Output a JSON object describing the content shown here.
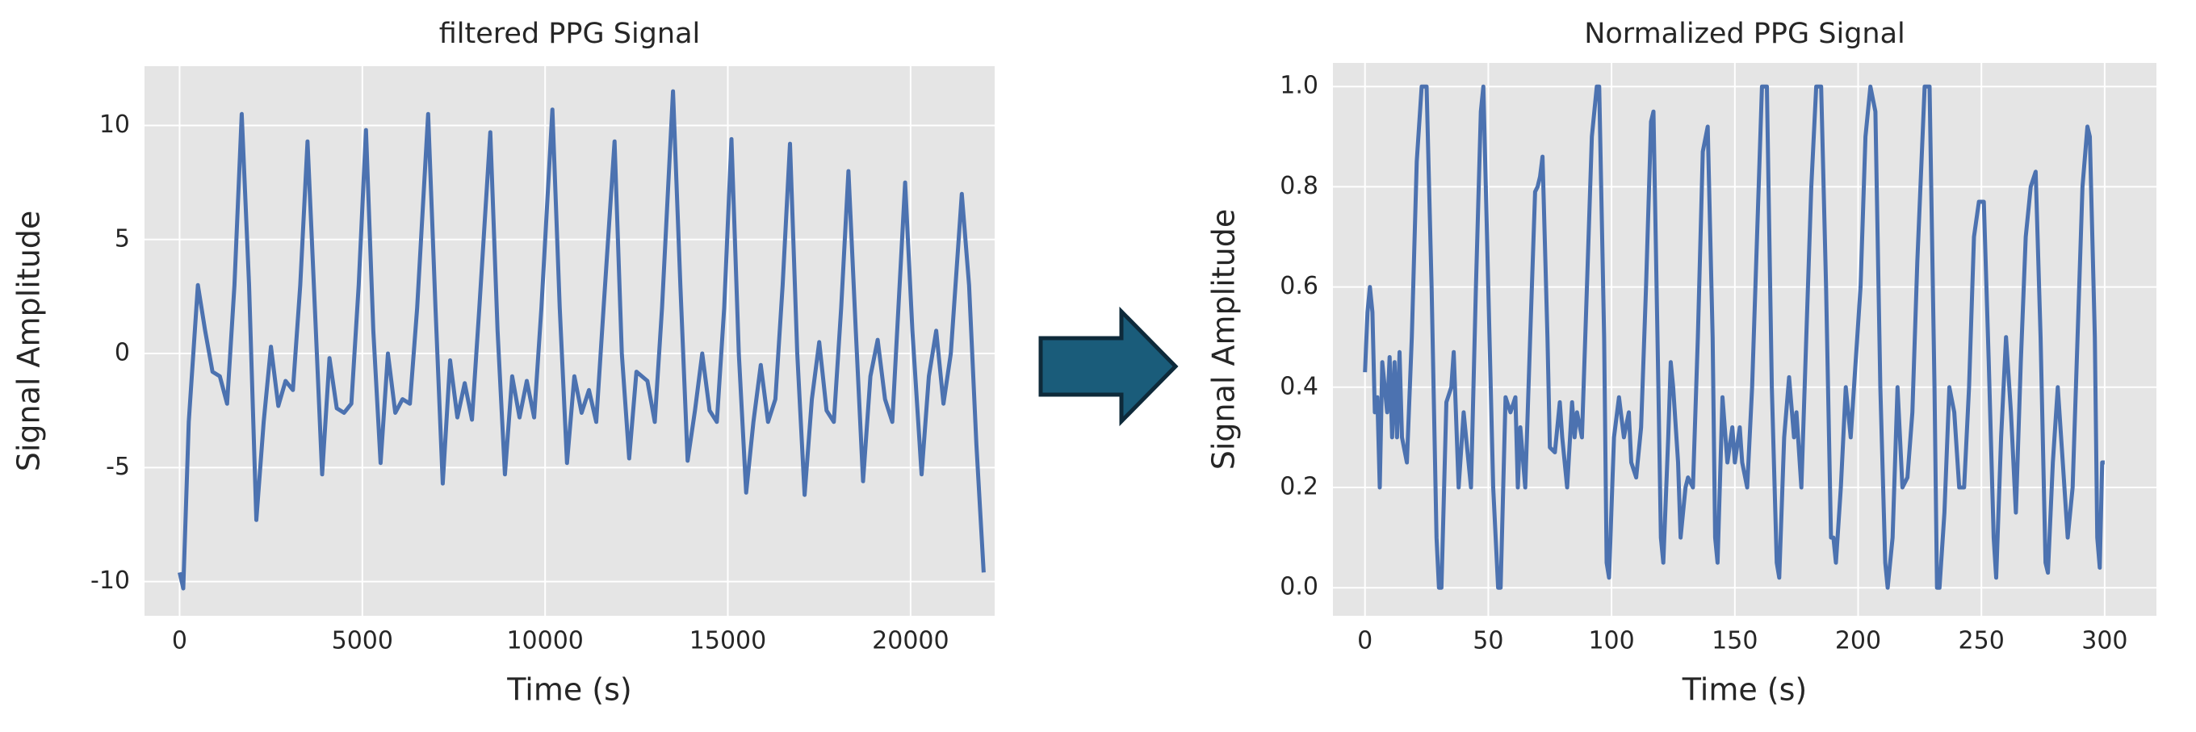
{
  "chart_data": [
    {
      "type": "line",
      "title": "filtered PPG Signal",
      "x_label": "Time (s)",
      "y_label": "Signal Amplitude",
      "color": "#4c72b0",
      "grid": true,
      "x": [
        0,
        100,
        250,
        500,
        700,
        900,
        1100,
        1300,
        1500,
        1700,
        1900,
        2100,
        2300,
        2500,
        2700,
        2900,
        3100,
        3300,
        3500,
        3700,
        3900,
        4100,
        4300,
        4500,
        4700,
        4900,
        5100,
        5300,
        5500,
        5700,
        5900,
        6100,
        6300,
        6500,
        6800,
        7000,
        7200,
        7400,
        7600,
        7800,
        8000,
        8200,
        8500,
        8700,
        8900,
        9100,
        9300,
        9500,
        9700,
        9900,
        10200,
        10400,
        10600,
        10800,
        11000,
        11200,
        11400,
        11600,
        11900,
        12100,
        12300,
        12500,
        12800,
        13000,
        13200,
        13500,
        13700,
        13900,
        14100,
        14300,
        14500,
        14700,
        14900,
        15100,
        15300,
        15500,
        15700,
        15900,
        16100,
        16300,
        16500,
        16700,
        16900,
        17100,
        17300,
        17500,
        17700,
        17900,
        18100,
        18300,
        18500,
        18700,
        18900,
        19100,
        19300,
        19500,
        19700,
        19850,
        20050,
        20300,
        20500,
        20700,
        20900,
        21100,
        21400,
        21600,
        21800,
        22000
      ],
      "values": [
        -9.6,
        -10.3,
        -3,
        3,
        1,
        -0.8,
        -1,
        -2.2,
        3,
        10.5,
        3,
        -7.3,
        -3,
        0.3,
        -2.3,
        -1.2,
        -1.6,
        3,
        9.3,
        2,
        -5.3,
        -0.2,
        -2.4,
        -2.6,
        -2.2,
        3,
        9.8,
        1,
        -4.8,
        0,
        -2.6,
        -2,
        -2.2,
        2,
        10.5,
        2,
        -5.7,
        -0.3,
        -2.8,
        -1.3,
        -2.9,
        2,
        9.7,
        1,
        -5.3,
        -1,
        -2.8,
        -1.2,
        -2.8,
        2,
        10.7,
        2,
        -4.8,
        -1,
        -2.6,
        -1.6,
        -3,
        2,
        9.3,
        0,
        -4.6,
        -0.8,
        -1.2,
        -3,
        2,
        11.5,
        3,
        -4.7,
        -2.5,
        0,
        -2.5,
        -3,
        2,
        9.4,
        0,
        -6.1,
        -3,
        -0.5,
        -3,
        -2,
        3,
        9.2,
        0,
        -6.2,
        -2,
        0.5,
        -2.5,
        -3,
        2,
        8,
        1,
        -5.6,
        -1,
        0.6,
        -2,
        -3,
        3,
        7.5,
        1,
        -5.3,
        -1,
        1,
        -2.2,
        0,
        7,
        3,
        -4,
        -9.6
      ],
      "xlim": [
        -960,
        22300
      ],
      "xticks": [
        0,
        5000,
        10000,
        15000,
        20000
      ],
      "ylim": [
        -11.5,
        12.6
      ],
      "yticks": [
        -10,
        -5,
        0,
        5,
        10
      ]
    },
    {
      "type": "line",
      "title": "Normalized PPG Signal",
      "x_label": "Time (s)",
      "y_label": "Signal Amplitude",
      "color": "#4c72b0",
      "grid": true,
      "x": [
        0,
        1,
        2,
        3,
        4,
        5,
        6,
        7,
        9,
        10,
        11,
        12,
        13,
        14,
        15,
        17,
        19,
        21,
        23,
        25,
        27,
        29,
        30,
        31,
        33,
        35,
        36,
        38,
        40,
        41,
        43,
        45,
        47,
        48,
        50,
        52,
        54,
        55,
        57,
        59,
        61,
        62,
        63,
        65,
        67,
        69,
        70,
        71,
        72,
        74,
        75,
        77,
        79,
        80,
        82,
        84,
        85,
        86,
        88,
        90,
        92,
        94,
        95,
        97,
        98,
        99,
        101,
        103,
        105,
        107,
        108,
        110,
        112,
        114,
        116,
        117,
        119,
        120,
        121,
        123,
        124,
        125,
        127,
        128,
        130,
        131,
        133,
        135,
        137,
        139,
        141,
        142,
        143,
        145,
        147,
        149,
        150,
        152,
        153,
        155,
        157,
        159,
        161,
        163,
        165,
        167,
        168,
        170,
        172,
        174,
        175,
        177,
        179,
        181,
        183,
        185,
        187,
        189,
        190,
        191,
        193,
        195,
        197,
        199,
        201,
        203,
        205,
        207,
        209,
        211,
        212,
        214,
        216,
        218,
        220,
        222,
        224,
        227,
        229,
        231,
        232,
        233,
        235,
        237,
        239,
        241,
        243,
        245,
        247,
        249,
        251,
        253,
        255,
        256,
        258,
        260,
        262,
        264,
        266,
        268,
        270,
        272,
        274,
        276,
        277,
        279,
        281,
        283,
        285,
        287,
        289,
        291,
        293,
        294,
        296,
        297,
        298,
        299,
        300
      ],
      "values": [
        0.43,
        0.55,
        0.6,
        0.55,
        0.35,
        0.38,
        0.2,
        0.45,
        0.35,
        0.46,
        0.3,
        0.45,
        0.3,
        0.47,
        0.3,
        0.25,
        0.5,
        0.85,
        1.0,
        1.0,
        0.6,
        0.1,
        0,
        0,
        0.37,
        0.4,
        0.47,
        0.2,
        0.35,
        0.3,
        0.2,
        0.6,
        0.95,
        1.0,
        0.6,
        0.2,
        0,
        0,
        0.38,
        0.35,
        0.38,
        0.2,
        0.32,
        0.2,
        0.5,
        0.79,
        0.8,
        0.82,
        0.86,
        0.5,
        0.28,
        0.27,
        0.37,
        0.3,
        0.2,
        0.37,
        0.3,
        0.35,
        0.3,
        0.6,
        0.9,
        1.0,
        1.0,
        0.5,
        0.05,
        0.02,
        0.3,
        0.38,
        0.3,
        0.35,
        0.25,
        0.22,
        0.32,
        0.6,
        0.93,
        0.95,
        0.4,
        0.1,
        0.05,
        0.3,
        0.45,
        0.4,
        0.25,
        0.1,
        0.2,
        0.22,
        0.2,
        0.5,
        0.87,
        0.92,
        0.5,
        0.1,
        0.05,
        0.38,
        0.25,
        0.32,
        0.25,
        0.32,
        0.25,
        0.2,
        0.4,
        0.7,
        1.0,
        1.0,
        0.4,
        0.05,
        0.02,
        0.3,
        0.42,
        0.3,
        0.35,
        0.2,
        0.5,
        0.8,
        1.0,
        1.0,
        0.6,
        0.1,
        0.1,
        0.05,
        0.2,
        0.4,
        0.3,
        0.45,
        0.6,
        0.9,
        1.0,
        0.95,
        0.4,
        0.05,
        0,
        0.1,
        0.4,
        0.2,
        0.22,
        0.35,
        0.65,
        1.0,
        1.0,
        0.4,
        0,
        0,
        0.15,
        0.4,
        0.35,
        0.2,
        0.2,
        0.4,
        0.7,
        0.77,
        0.77,
        0.45,
        0.1,
        0.02,
        0.3,
        0.5,
        0.35,
        0.15,
        0.45,
        0.7,
        0.8,
        0.83,
        0.5,
        0.05,
        0.03,
        0.25,
        0.4,
        0.25,
        0.1,
        0.2,
        0.5,
        0.8,
        0.92,
        0.9,
        0.5,
        0.1,
        0.04,
        0.25,
        0.25
      ],
      "xlim": [
        -13,
        321
      ],
      "xticks": [
        0,
        50,
        100,
        150,
        200,
        250,
        300
      ],
      "ylim": [
        -0.056,
        1.047
      ],
      "yticks": [
        {
          "value": 0,
          "label": "0.0"
        },
        {
          "value": 0.2,
          "label": "0.2"
        },
        {
          "value": 0.4,
          "label": "0.4"
        },
        {
          "value": 0.6,
          "label": "0.6"
        },
        {
          "value": 0.8,
          "label": "0.8"
        },
        {
          "value": 1,
          "label": "1.0"
        }
      ]
    }
  ]
}
